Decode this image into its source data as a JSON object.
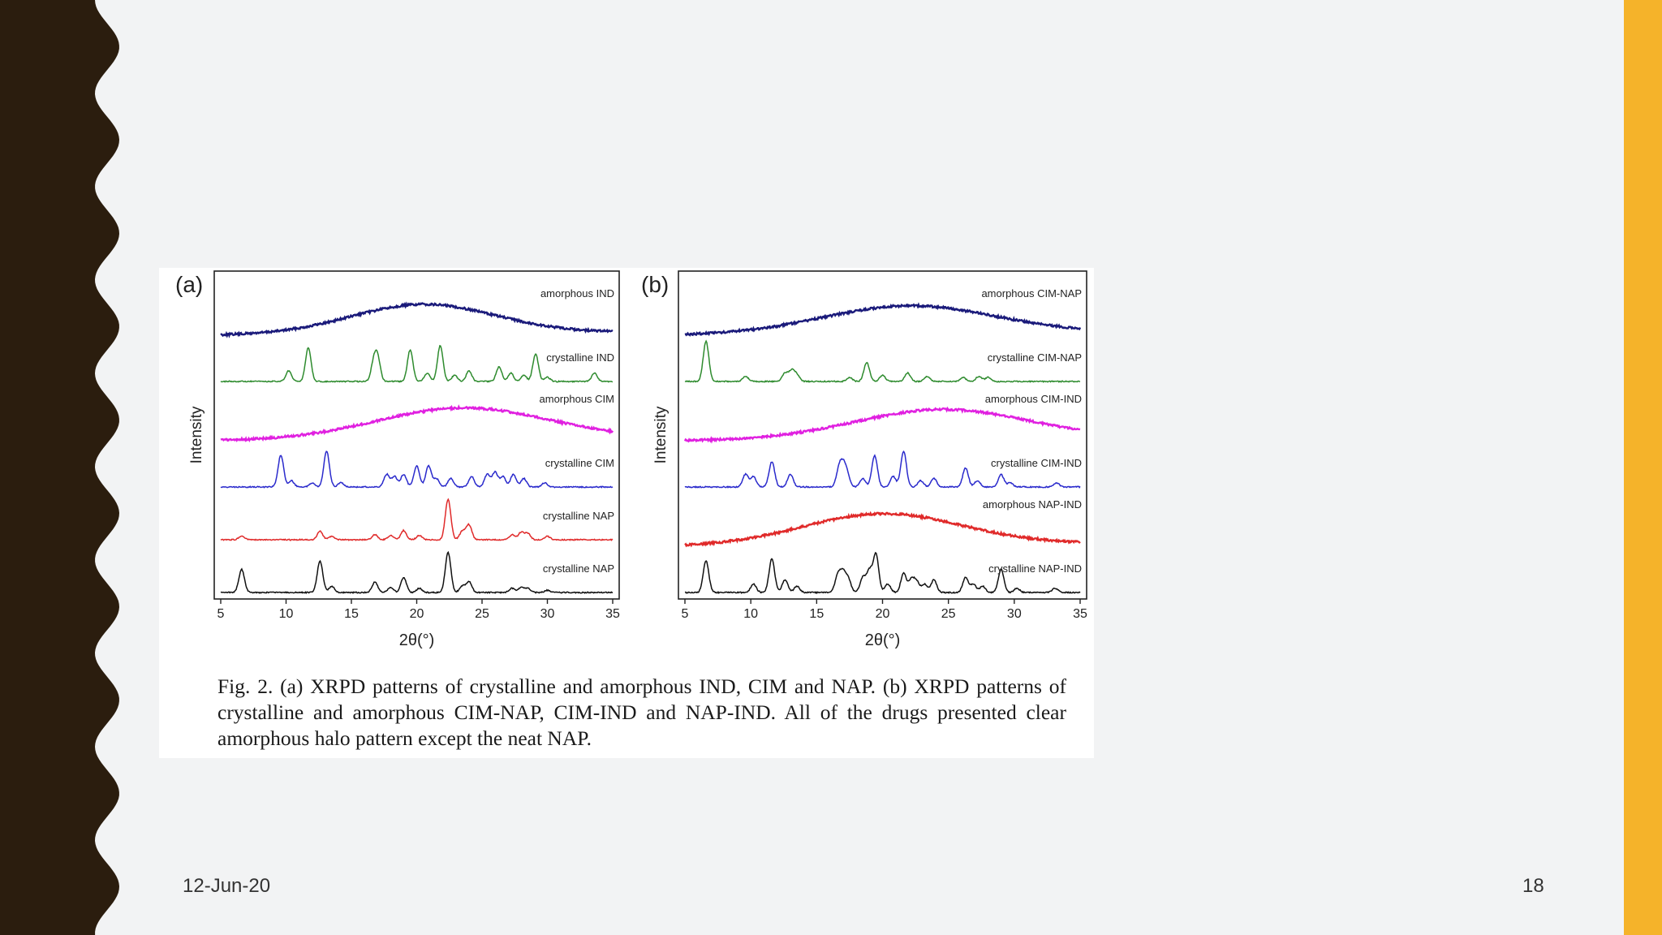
{
  "slide": {
    "date": "12-Jun-20",
    "page_number": "18",
    "colors": {
      "background": "#f2f3f4",
      "left_wave": "#2b1d0e",
      "right_bar": "#f5b32a"
    }
  },
  "figure": {
    "caption": "Fig. 2. (a) XRPD patterns of crystalline and amorphous IND, CIM and NAP. (b) XRPD patterns of crystalline and amorphous CIM-NAP, CIM-IND and NAP-IND. All of the drugs presented clear amorphous halo pattern except the neat NAP."
  },
  "chart_data": [
    {
      "type": "line",
      "panel_label": "(a)",
      "xlabel": "2θ(°)",
      "ylabel": "Intensity",
      "xlim": [
        5,
        35
      ],
      "xticks": [
        5,
        10,
        15,
        20,
        25,
        30,
        35
      ],
      "series": [
        {
          "name": "amorphous IND",
          "kind": "halo",
          "color": "#1a1a7a",
          "halo": {
            "center": 20.5,
            "width": 5.5,
            "height": 0.9
          }
        },
        {
          "name": "crystalline IND",
          "kind": "peaks",
          "color": "#2e8b2e",
          "peaks": [
            [
              10.2,
              0.25
            ],
            [
              11.7,
              0.8
            ],
            [
              16.7,
              0.4
            ],
            [
              17.0,
              0.55
            ],
            [
              19.5,
              0.75
            ],
            [
              20.8,
              0.2
            ],
            [
              21.8,
              0.85
            ],
            [
              22.9,
              0.15
            ],
            [
              24.0,
              0.25
            ],
            [
              26.3,
              0.35
            ],
            [
              27.2,
              0.2
            ],
            [
              28.2,
              0.15
            ],
            [
              29.1,
              0.65
            ],
            [
              30.0,
              0.1
            ],
            [
              33.6,
              0.2
            ]
          ]
        },
        {
          "name": "amorphous CIM",
          "kind": "halo",
          "color": "#e020e0",
          "halo": {
            "center": 23.5,
            "width": 6.5,
            "height": 0.95
          }
        },
        {
          "name": "crystalline CIM",
          "kind": "peaks",
          "color": "#2a2acc",
          "peaks": [
            [
              9.6,
              0.75
            ],
            [
              10.4,
              0.15
            ],
            [
              12.0,
              0.1
            ],
            [
              13.1,
              0.85
            ],
            [
              14.2,
              0.1
            ],
            [
              17.7,
              0.3
            ],
            [
              18.3,
              0.25
            ],
            [
              19.0,
              0.3
            ],
            [
              20.0,
              0.5
            ],
            [
              20.9,
              0.5
            ],
            [
              21.5,
              0.2
            ],
            [
              22.6,
              0.2
            ],
            [
              24.2,
              0.25
            ],
            [
              25.4,
              0.3
            ],
            [
              26.0,
              0.35
            ],
            [
              26.6,
              0.25
            ],
            [
              27.4,
              0.3
            ],
            [
              28.2,
              0.2
            ],
            [
              29.8,
              0.1
            ]
          ]
        },
        {
          "name": "crystalline NAP",
          "kind": "peaks",
          "color": "#e02a2a",
          "peaks": [
            [
              6.6,
              0.08
            ],
            [
              12.6,
              0.2
            ],
            [
              13.5,
              0.08
            ],
            [
              16.8,
              0.12
            ],
            [
              18.0,
              0.1
            ],
            [
              19.0,
              0.22
            ],
            [
              20.2,
              0.1
            ],
            [
              22.4,
              0.95
            ],
            [
              23.5,
              0.2
            ],
            [
              24.0,
              0.35
            ],
            [
              27.3,
              0.12
            ],
            [
              28.0,
              0.18
            ],
            [
              28.5,
              0.15
            ],
            [
              30.0,
              0.08
            ]
          ]
        },
        {
          "name": "crystalline NAP",
          "kind": "peaks",
          "color": "#111111",
          "peaks": [
            [
              6.6,
              0.55
            ],
            [
              12.6,
              0.75
            ],
            [
              13.5,
              0.15
            ],
            [
              16.8,
              0.25
            ],
            [
              18.0,
              0.12
            ],
            [
              19.0,
              0.35
            ],
            [
              20.2,
              0.1
            ],
            [
              22.4,
              0.95
            ],
            [
              23.5,
              0.15
            ],
            [
              24.0,
              0.25
            ],
            [
              27.3,
              0.1
            ],
            [
              28.0,
              0.12
            ],
            [
              28.5,
              0.1
            ],
            [
              30.0,
              0.05
            ]
          ]
        }
      ]
    },
    {
      "type": "line",
      "panel_label": "(b)",
      "xlabel": "2θ(°)",
      "ylabel": "Intensity",
      "xlim": [
        5,
        35
      ],
      "xticks": [
        5,
        10,
        15,
        20,
        25,
        30,
        35
      ],
      "series": [
        {
          "name": "amorphous CIM-NAP",
          "kind": "halo",
          "color": "#1a1a7a",
          "halo": {
            "center": 22.0,
            "width": 6.5,
            "height": 0.85
          }
        },
        {
          "name": "crystalline CIM-NAP",
          "kind": "peaks",
          "color": "#2e8b2e",
          "peaks": [
            [
              6.6,
              0.95
            ],
            [
              9.6,
              0.12
            ],
            [
              12.6,
              0.2
            ],
            [
              13.1,
              0.25
            ],
            [
              13.5,
              0.15
            ],
            [
              17.5,
              0.1
            ],
            [
              18.8,
              0.45
            ],
            [
              20.0,
              0.15
            ],
            [
              21.9,
              0.2
            ],
            [
              23.4,
              0.12
            ],
            [
              26.1,
              0.1
            ],
            [
              27.3,
              0.12
            ],
            [
              28.0,
              0.1
            ]
          ]
        },
        {
          "name": "amorphous CIM-IND",
          "kind": "halo",
          "color": "#e020e0",
          "halo": {
            "center": 24.5,
            "width": 6.5,
            "height": 0.9
          }
        },
        {
          "name": "crystalline CIM-IND",
          "kind": "peaks",
          "color": "#2a2acc",
          "peaks": [
            [
              9.6,
              0.3
            ],
            [
              10.2,
              0.25
            ],
            [
              11.6,
              0.6
            ],
            [
              13.0,
              0.3
            ],
            [
              16.7,
              0.4
            ],
            [
              17.0,
              0.4
            ],
            [
              17.3,
              0.3
            ],
            [
              18.5,
              0.2
            ],
            [
              19.4,
              0.75
            ],
            [
              20.8,
              0.25
            ],
            [
              21.6,
              0.85
            ],
            [
              22.9,
              0.15
            ],
            [
              23.9,
              0.2
            ],
            [
              26.3,
              0.45
            ],
            [
              27.2,
              0.15
            ],
            [
              29.0,
              0.3
            ],
            [
              29.7,
              0.1
            ],
            [
              33.2,
              0.1
            ]
          ]
        },
        {
          "name": "amorphous NAP-IND",
          "kind": "halo",
          "color": "#e02a2a",
          "halo": {
            "center": 20.0,
            "width": 6.0,
            "height": 0.95
          }
        },
        {
          "name": "crystalline NAP-IND",
          "kind": "peaks",
          "color": "#111111",
          "peaks": [
            [
              6.6,
              0.75
            ],
            [
              10.2,
              0.2
            ],
            [
              11.6,
              0.8
            ],
            [
              12.6,
              0.3
            ],
            [
              13.5,
              0.15
            ],
            [
              16.6,
              0.4
            ],
            [
              17.0,
              0.45
            ],
            [
              17.4,
              0.3
            ],
            [
              18.5,
              0.35
            ],
            [
              19.0,
              0.5
            ],
            [
              19.5,
              0.9
            ],
            [
              20.4,
              0.2
            ],
            [
              21.6,
              0.45
            ],
            [
              22.2,
              0.3
            ],
            [
              22.6,
              0.25
            ],
            [
              23.2,
              0.2
            ],
            [
              23.9,
              0.3
            ],
            [
              26.3,
              0.35
            ],
            [
              26.9,
              0.2
            ],
            [
              27.6,
              0.15
            ],
            [
              29.0,
              0.55
            ],
            [
              30.2,
              0.1
            ],
            [
              33.1,
              0.1
            ]
          ]
        }
      ]
    }
  ]
}
